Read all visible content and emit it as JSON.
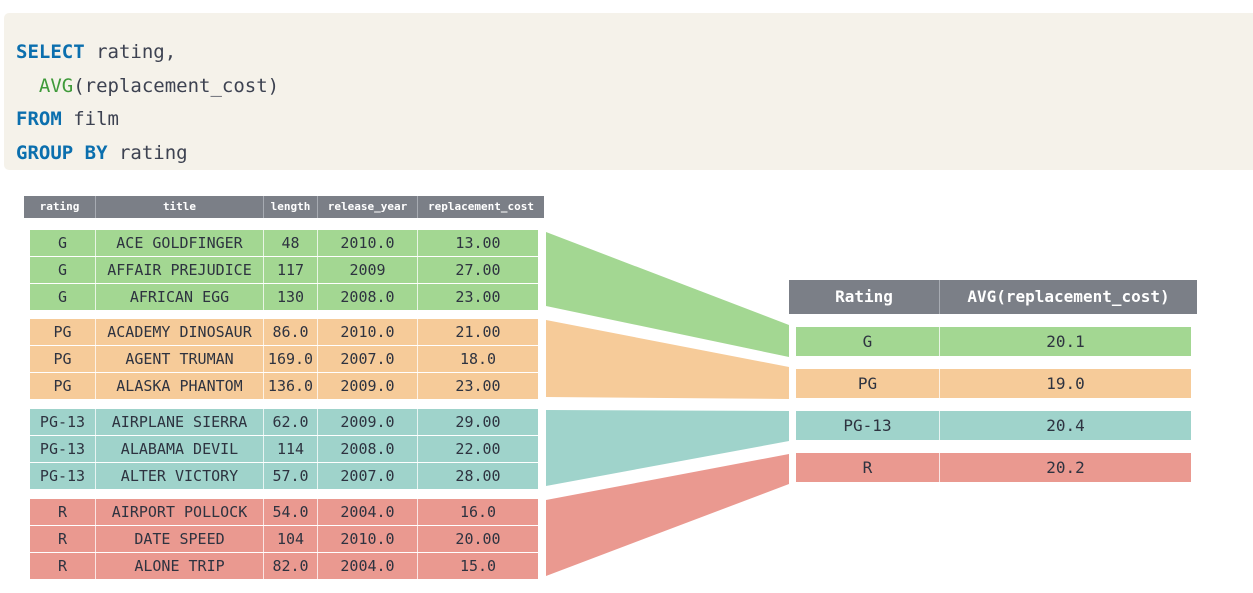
{
  "sql": {
    "line1": {
      "keyword": "SELECT",
      "rest": " rating,"
    },
    "line2": {
      "indent": "  ",
      "function": "AVG",
      "rest": "(replacement_cost)"
    },
    "line3": {
      "keyword": "FROM",
      "rest": " film"
    },
    "line4": {
      "keyword": "GROUP BY",
      "rest": " rating"
    }
  },
  "source_table": {
    "headers": [
      "rating",
      "title",
      "length",
      "release_year",
      "replacement_cost"
    ],
    "groups": [
      {
        "color": "#a3d792",
        "rows": [
          [
            "G",
            "ACE GOLDFINGER",
            "48",
            "2010.0",
            "13.00"
          ],
          [
            "G",
            "AFFAIR PREJUDICE",
            "117",
            "2009",
            "27.00"
          ],
          [
            "G",
            "AFRICAN EGG",
            "130",
            "2008.0",
            "23.00"
          ]
        ]
      },
      {
        "color": "#f6cb99",
        "rows": [
          [
            "PG",
            "ACADEMY DINOSAUR",
            "86.0",
            "2010.0",
            "21.00"
          ],
          [
            "PG",
            "AGENT TRUMAN",
            "169.0",
            "2007.0",
            "18.0"
          ],
          [
            "PG",
            "ALASKA PHANTOM",
            "136.0",
            "2009.0",
            "23.00"
          ]
        ]
      },
      {
        "color": "#9fd3cb",
        "rows": [
          [
            "PG-13",
            "AIRPLANE SIERRA",
            "62.0",
            "2009.0",
            "29.00"
          ],
          [
            "PG-13",
            "ALABAMA DEVIL",
            "114",
            "2008.0",
            "22.00"
          ],
          [
            "PG-13",
            "ALTER VICTORY",
            "57.0",
            "2007.0",
            "28.00"
          ]
        ]
      },
      {
        "color": "#ea9990",
        "rows": [
          [
            "R",
            "AIRPORT POLLOCK",
            "54.0",
            "2004.0",
            "16.0"
          ],
          [
            "R",
            "DATE SPEED",
            "104",
            "2010.0",
            "20.00"
          ],
          [
            "R",
            "ALONE TRIP",
            "82.0",
            "2004.0",
            "15.0"
          ]
        ]
      }
    ]
  },
  "result_table": {
    "headers": [
      "Rating",
      "AVG(replacement_cost)"
    ],
    "rows": [
      [
        "G",
        "20.1"
      ],
      [
        "PG",
        "19.0"
      ],
      [
        "PG-13",
        "20.4"
      ],
      [
        "R",
        "20.2"
      ]
    ]
  }
}
